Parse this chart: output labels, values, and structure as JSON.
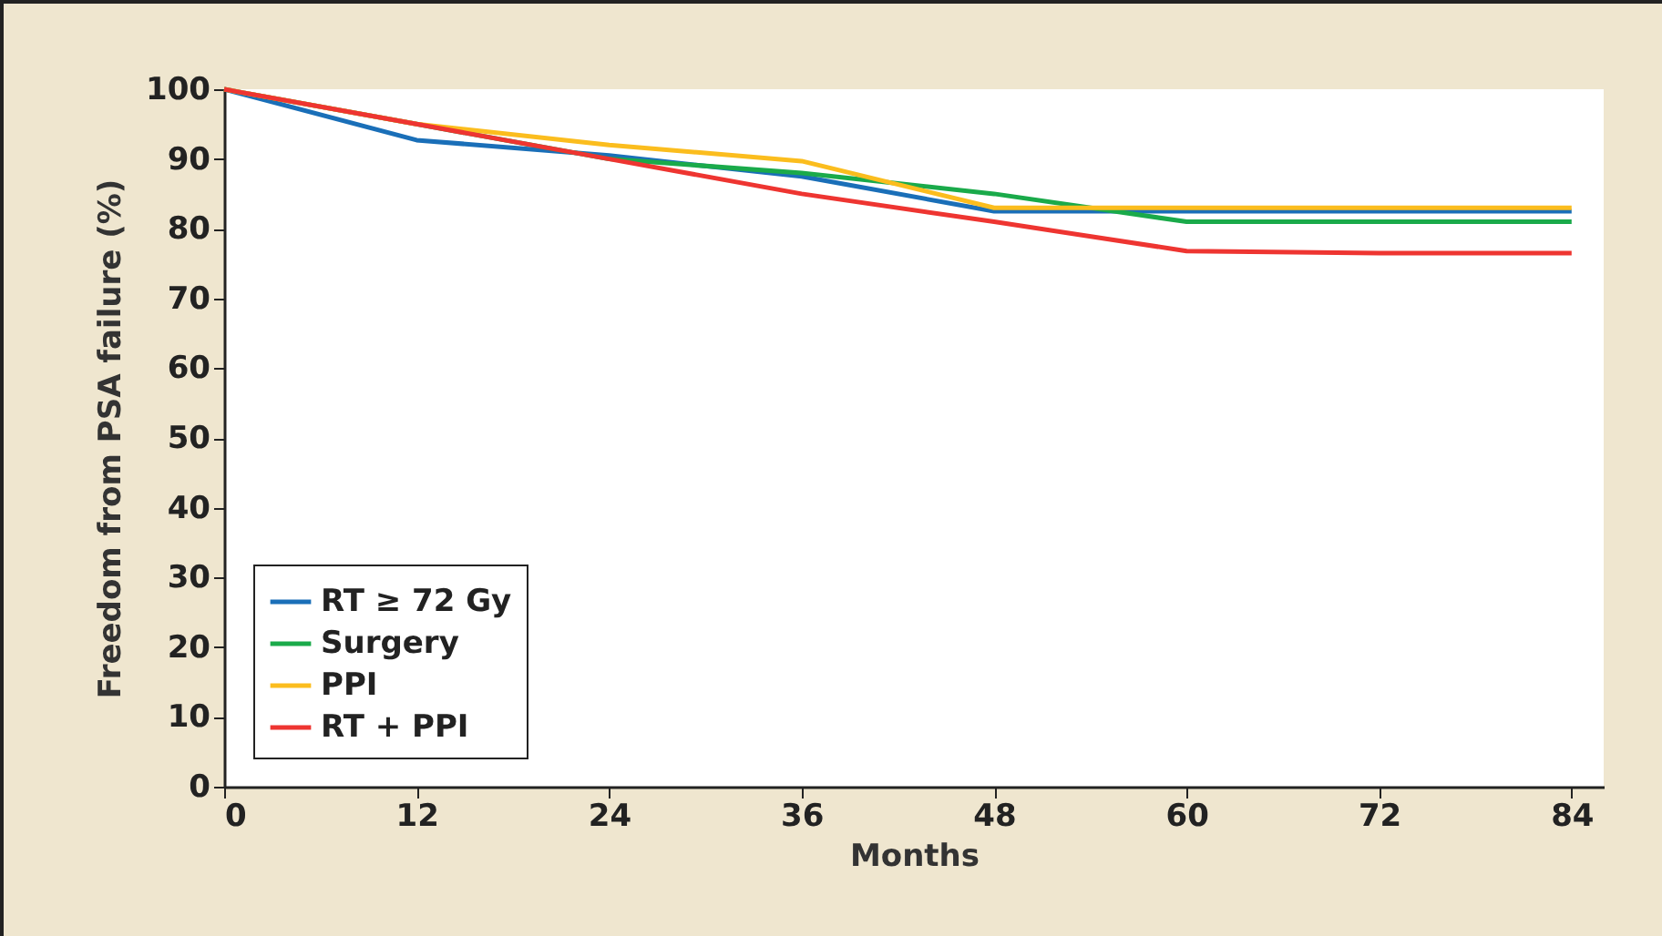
{
  "chart_data": {
    "type": "line",
    "xlabel": "Months",
    "ylabel": "Freedom from PSA failure (%)",
    "x": [
      0,
      12,
      24,
      36,
      48,
      60,
      72,
      84
    ],
    "series": [
      {
        "name": "RT ≥ 72 Gy",
        "color": "#1a6fb8",
        "values": [
          100,
          92.7,
          90.5,
          87.5,
          82.5,
          82.5,
          82.5,
          82.5
        ]
      },
      {
        "name": "Surgery",
        "color": "#1aaa4a",
        "values": [
          100,
          95,
          90,
          88,
          85,
          81,
          81,
          81
        ]
      },
      {
        "name": "PPI",
        "color": "#fbbd1e",
        "values": [
          100,
          95,
          92,
          89.7,
          83,
          83,
          83,
          83
        ]
      },
      {
        "name": "RT + PPI",
        "color": "#ee3531",
        "values": [
          100,
          95,
          90,
          85,
          81,
          76.8,
          76.5,
          76.5
        ]
      }
    ],
    "xlim": [
      0,
      86
    ],
    "xticks": [
      0,
      12,
      24,
      36,
      48,
      60,
      72,
      84
    ],
    "ylim": [
      0,
      100
    ],
    "yticks": [
      0,
      10,
      20,
      30,
      40,
      50,
      60,
      70,
      80,
      90,
      100
    ],
    "grid": false,
    "legend": "bottom left",
    "marker": "none",
    "line_style": "solid"
  }
}
